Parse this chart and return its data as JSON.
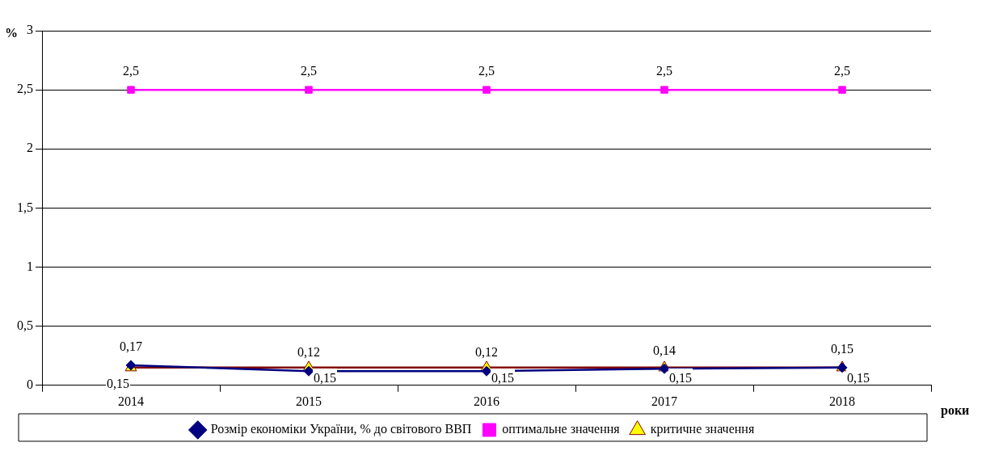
{
  "chart_data": {
    "type": "line",
    "ylabel": "%",
    "xlabel": "роки",
    "categories": [
      "2014",
      "2015",
      "2016",
      "2017",
      "2018"
    ],
    "ylim": [
      0,
      3
    ],
    "yticks": [
      0,
      {
        "value": 0.5,
        "label": "0,5"
      },
      1,
      {
        "value": 1.5,
        "label": "1,5"
      },
      2,
      {
        "value": 2.5,
        "label": "2,5"
      },
      3
    ],
    "grid": "y",
    "legend": "bottom",
    "series": [
      {
        "name": "Розмір економіки України, % до світового ВВП",
        "color": "#000080",
        "marker": "diamond",
        "values": [
          0.17,
          0.12,
          0.12,
          0.14,
          0.15
        ],
        "value_labels": [
          "0,17",
          "0,12",
          "0,12",
          "0,14",
          "0,15"
        ]
      },
      {
        "name": "оптимальне значення",
        "color": "#ff00ff",
        "marker": "square",
        "values": [
          2.5,
          2.5,
          2.5,
          2.5,
          2.5
        ],
        "value_labels": [
          "2,5",
          "2,5",
          "2,5",
          "2,5",
          "2,5"
        ]
      },
      {
        "name": "критичне значення",
        "color": "#800000",
        "marker": "triangle",
        "values": [
          0.15,
          0.15,
          0.15,
          0.15,
          0.15
        ],
        "value_labels": [
          "0,15",
          "0,15",
          "0,15",
          "0,15",
          "0,15"
        ]
      }
    ]
  }
}
